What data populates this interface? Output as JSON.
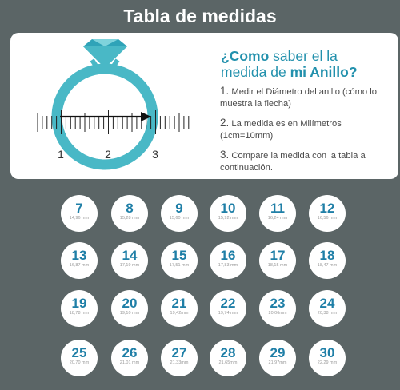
{
  "title": "Tabla de medidas",
  "heading": {
    "line1_a": "¿Como",
    "line1_b": " saber el la",
    "line2_a": "medida de ",
    "line2_b": "mi Anillo?"
  },
  "steps": [
    {
      "number": "1.",
      "text": "Medir el Diámetro del anillo (cómo lo muestra la flecha)"
    },
    {
      "number": "2.",
      "text": "La medida es en Milímetros (1cm=10mm)"
    },
    {
      "number": "3.",
      "text": "Compare la medida con la tabla a continuación."
    }
  ],
  "ruler": {
    "labels": [
      "1",
      "2",
      "3"
    ]
  },
  "colors": {
    "accent": "#2391ad",
    "ring": "#49b8c6",
    "background": "#5b6566"
  },
  "sizes": [
    {
      "size": "7",
      "mm": "14,96 mm"
    },
    {
      "size": "8",
      "mm": "15,28 mm"
    },
    {
      "size": "9",
      "mm": "15,60 mm"
    },
    {
      "size": "10",
      "mm": "15,92 mm"
    },
    {
      "size": "11",
      "mm": "16,24 mm"
    },
    {
      "size": "12",
      "mm": "16,56 mm"
    },
    {
      "size": "13",
      "mm": "16,87 mm"
    },
    {
      "size": "14",
      "mm": "17,19 mm"
    },
    {
      "size": "15",
      "mm": "17,51 mm"
    },
    {
      "size": "16",
      "mm": "17,83 mm"
    },
    {
      "size": "17",
      "mm": "18,15 mm"
    },
    {
      "size": "18",
      "mm": "18,47 mm"
    },
    {
      "size": "19",
      "mm": "18,78 mm"
    },
    {
      "size": "20",
      "mm": "19,10 mm"
    },
    {
      "size": "21",
      "mm": "19,42mm"
    },
    {
      "size": "22",
      "mm": "19,74 mm"
    },
    {
      "size": "23",
      "mm": "20,06mm"
    },
    {
      "size": "24",
      "mm": "20,38 mm"
    },
    {
      "size": "25",
      "mm": "20,70 mm"
    },
    {
      "size": "26",
      "mm": "21,01 mm"
    },
    {
      "size": "27",
      "mm": "21,33mm"
    },
    {
      "size": "28",
      "mm": "21,65mm"
    },
    {
      "size": "29",
      "mm": "21,97mm"
    },
    {
      "size": "30",
      "mm": "22,29 mm"
    }
  ]
}
